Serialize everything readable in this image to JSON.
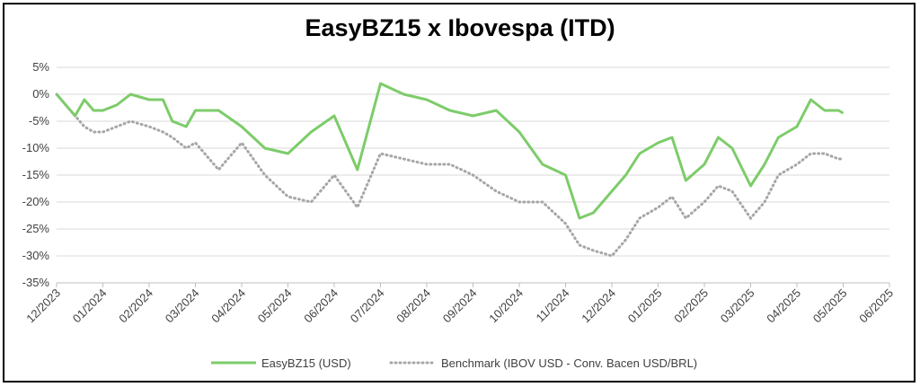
{
  "chart_data": {
    "type": "line",
    "title": "EasyBZ15 x Ibovespa (ITD)",
    "xlabel": "",
    "ylabel": "",
    "ylim": [
      -35,
      5
    ],
    "yticks": [
      "5%",
      "0%",
      "-5%",
      "-10%",
      "-15%",
      "-20%",
      "-25%",
      "-30%",
      "-35%"
    ],
    "ytick_values": [
      5,
      0,
      -5,
      -10,
      -15,
      -20,
      -25,
      -30,
      -35
    ],
    "xticks": [
      "12/2023",
      "01/2024",
      "02/2024",
      "03/2024",
      "04/2024",
      "05/2024",
      "06/2024",
      "07/2024",
      "08/2024",
      "09/2024",
      "10/2024",
      "11/2024",
      "12/2024",
      "01/2025",
      "02/2025",
      "03/2025",
      "04/2025",
      "05/2025",
      "06/2025"
    ],
    "grid": "horizontal",
    "legend_position": "bottom",
    "colors": {
      "easy": "#7dcc6a",
      "bench": "#a6a6a6"
    },
    "series": [
      {
        "name": "EasyBZ15 (USD)",
        "x": [
          0,
          0.2,
          0.4,
          0.6,
          0.8,
          1.0,
          1.3,
          1.6,
          2.0,
          2.3,
          2.5,
          2.8,
          3.0,
          3.5,
          4.0,
          4.5,
          5.0,
          5.5,
          6.0,
          6.5,
          7.0,
          7.5,
          8.0,
          8.5,
          9.0,
          9.5,
          10.0,
          10.5,
          11.0,
          11.3,
          11.6,
          12.0,
          12.3,
          12.6,
          13.0,
          13.3,
          13.6,
          14.0,
          14.3,
          14.6,
          15.0,
          15.3,
          15.6,
          16.0,
          16.3,
          16.6,
          16.9,
          17.0
        ],
        "values": [
          0,
          -2,
          -4,
          -1,
          -3,
          -3,
          -2,
          0,
          -1,
          -1,
          -5,
          -6,
          -3,
          -3,
          -6,
          -10,
          -11,
          -7,
          -4,
          -14,
          2,
          0,
          -1,
          -3,
          -4,
          -3,
          -7,
          -13,
          -15,
          -23,
          -22,
          -18,
          -15,
          -11,
          -9,
          -8,
          -16,
          -13,
          -8,
          -10,
          -17,
          -13,
          -8,
          -6,
          -1,
          -3,
          -3,
          -3.5
        ]
      },
      {
        "name": "Benchmark (IBOV USD - Conv. Bacen USD/BRL)",
        "x": [
          0,
          0.2,
          0.4,
          0.6,
          0.8,
          1.0,
          1.3,
          1.6,
          2.0,
          2.3,
          2.5,
          2.8,
          3.0,
          3.5,
          4.0,
          4.5,
          5.0,
          5.5,
          6.0,
          6.5,
          7.0,
          7.5,
          8.0,
          8.5,
          9.0,
          9.5,
          10.0,
          10.5,
          11.0,
          11.3,
          11.6,
          12.0,
          12.3,
          12.6,
          13.0,
          13.3,
          13.6,
          14.0,
          14.3,
          14.6,
          15.0,
          15.3,
          15.6,
          16.0,
          16.3,
          16.6,
          16.9,
          17.0
        ],
        "values": [
          0,
          -2,
          -4,
          -6,
          -7,
          -7,
          -6,
          -5,
          -6,
          -7,
          -8,
          -10,
          -9,
          -14,
          -9,
          -15,
          -19,
          -20,
          -15,
          -21,
          -11,
          -12,
          -13,
          -13,
          -15,
          -18,
          -20,
          -20,
          -24,
          -28,
          -29,
          -30,
          -27,
          -23,
          -21,
          -19,
          -23,
          -20,
          -17,
          -18,
          -23,
          -20,
          -15,
          -13,
          -11,
          -11,
          -12,
          -12
        ]
      }
    ]
  }
}
